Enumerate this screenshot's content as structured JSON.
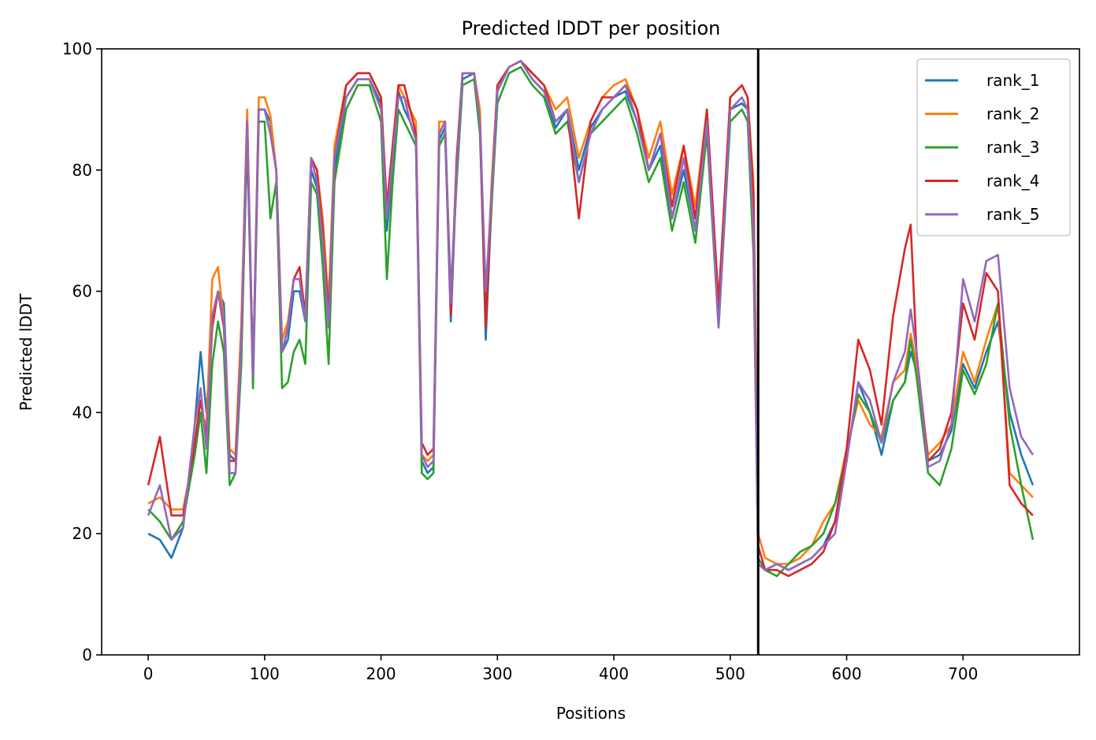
{
  "chart_data": {
    "type": "line",
    "title": "Predicted lDDT per position",
    "xlabel": "Positions",
    "ylabel": "Predicted lDDT",
    "xlim": [
      -40,
      800
    ],
    "ylim": [
      0,
      100
    ],
    "xticks": [
      "0",
      "100",
      "200",
      "300",
      "400",
      "500",
      "600",
      "700"
    ],
    "yticks": [
      "0",
      "20",
      "40",
      "60",
      "80",
      "100"
    ],
    "vline_x": 524,
    "legend_position": "top-right",
    "grid": false,
    "x": [
      0,
      10,
      20,
      30,
      40,
      45,
      50,
      55,
      60,
      65,
      70,
      75,
      80,
      85,
      90,
      95,
      100,
      105,
      110,
      115,
      120,
      125,
      130,
      135,
      140,
      145,
      150,
      155,
      160,
      170,
      180,
      190,
      200,
      205,
      210,
      215,
      220,
      225,
      230,
      235,
      240,
      245,
      250,
      255,
      260,
      265,
      270,
      280,
      285,
      290,
      295,
      300,
      310,
      320,
      330,
      340,
      350,
      360,
      370,
      380,
      390,
      400,
      410,
      420,
      430,
      440,
      450,
      460,
      470,
      480,
      490,
      500,
      510,
      515,
      520,
      524,
      530,
      540,
      550,
      560,
      570,
      580,
      590,
      600,
      610,
      620,
      630,
      640,
      650,
      655,
      660,
      670,
      680,
      690,
      700,
      710,
      720,
      730,
      740,
      750,
      760
    ],
    "series": [
      {
        "name": "rank_1",
        "color": "#1f77b4",
        "values": [
          20,
          19,
          16,
          21,
          38,
          50,
          40,
          55,
          60,
          58,
          33,
          32,
          50,
          85,
          45,
          90,
          90,
          88,
          80,
          50,
          52,
          60,
          60,
          55,
          80,
          77,
          70,
          55,
          80,
          92,
          95,
          95,
          91,
          70,
          80,
          93,
          90,
          88,
          85,
          32,
          30,
          31,
          85,
          87,
          55,
          80,
          95,
          96,
          88,
          52,
          75,
          93,
          97,
          98,
          95,
          93,
          87,
          90,
          80,
          87,
          90,
          92,
          93,
          88,
          80,
          84,
          72,
          80,
          70,
          88,
          55,
          90,
          91,
          90,
          75,
          15,
          14,
          15,
          14,
          15,
          16,
          18,
          22,
          32,
          45,
          40,
          33,
          42,
          45,
          50,
          47,
          32,
          33,
          37,
          48,
          44,
          50,
          55,
          40,
          33,
          28
        ]
      },
      {
        "name": "rank_2",
        "color": "#ff7f0e",
        "values": [
          25,
          26,
          24,
          24,
          34,
          40,
          38,
          62,
          64,
          55,
          34,
          33,
          55,
          90,
          46,
          92,
          92,
          89,
          80,
          52,
          55,
          62,
          62,
          56,
          82,
          80,
          72,
          58,
          84,
          94,
          96,
          96,
          92,
          72,
          82,
          94,
          92,
          90,
          88,
          33,
          32,
          33,
          88,
          88,
          58,
          82,
          96,
          96,
          90,
          56,
          78,
          94,
          97,
          98,
          96,
          94,
          90,
          92,
          82,
          88,
          92,
          94,
          95,
          90,
          82,
          88,
          76,
          84,
          74,
          90,
          58,
          92,
          94,
          92,
          78,
          20,
          16,
          15,
          15,
          16,
          18,
          22,
          25,
          34,
          42,
          38,
          36,
          45,
          47,
          53,
          48,
          33,
          35,
          38,
          50,
          45,
          52,
          58,
          30,
          28,
          26
        ]
      },
      {
        "name": "rank_3",
        "color": "#2ca02c",
        "values": [
          24,
          22,
          19,
          22,
          33,
          40,
          30,
          48,
          55,
          50,
          28,
          30,
          48,
          88,
          44,
          88,
          88,
          72,
          78,
          44,
          45,
          50,
          52,
          48,
          78,
          76,
          64,
          48,
          78,
          90,
          94,
          94,
          88,
          62,
          78,
          90,
          88,
          86,
          84,
          30,
          29,
          30,
          84,
          86,
          60,
          78,
          94,
          95,
          86,
          56,
          74,
          91,
          96,
          97,
          94,
          92,
          86,
          88,
          78,
          86,
          88,
          90,
          92,
          86,
          78,
          82,
          70,
          78,
          68,
          86,
          54,
          88,
          90,
          88,
          66,
          16,
          14,
          13,
          15,
          17,
          18,
          20,
          25,
          33,
          43,
          40,
          35,
          42,
          45,
          52,
          46,
          30,
          28,
          34,
          47,
          43,
          48,
          58,
          38,
          28,
          19
        ]
      },
      {
        "name": "rank_4",
        "color": "#d62728",
        "values": [
          28,
          36,
          23,
          23,
          35,
          42,
          36,
          54,
          60,
          54,
          32,
          32,
          52,
          88,
          46,
          90,
          90,
          86,
          80,
          50,
          54,
          62,
          64,
          56,
          82,
          80,
          70,
          56,
          82,
          94,
          96,
          96,
          92,
          74,
          84,
          94,
          94,
          90,
          86,
          35,
          33,
          34,
          86,
          88,
          56,
          82,
          96,
          96,
          88,
          54,
          76,
          94,
          97,
          98,
          96,
          94,
          88,
          90,
          72,
          88,
          92,
          92,
          94,
          90,
          80,
          86,
          74,
          84,
          72,
          90,
          58,
          92,
          94,
          92,
          76,
          18,
          14,
          14,
          13,
          14,
          15,
          17,
          22,
          34,
          52,
          47,
          38,
          56,
          67,
          71,
          50,
          32,
          34,
          40,
          58,
          52,
          63,
          60,
          28,
          25,
          23
        ]
      },
      {
        "name": "rank_5",
        "color": "#9467bd",
        "values": [
          23,
          28,
          19,
          21,
          38,
          44,
          34,
          56,
          60,
          55,
          30,
          30,
          52,
          88,
          46,
          90,
          90,
          86,
          80,
          50,
          54,
          62,
          62,
          55,
          82,
          78,
          68,
          54,
          82,
          92,
          95,
          95,
          90,
          72,
          82,
          92,
          92,
          88,
          85,
          33,
          31,
          32,
          86,
          88,
          58,
          80,
          96,
          96,
          88,
          60,
          76,
          93,
          97,
          98,
          95,
          93,
          88,
          90,
          78,
          86,
          90,
          92,
          94,
          88,
          80,
          86,
          72,
          82,
          70,
          88,
          54,
          90,
          92,
          90,
          70,
          15,
          14,
          15,
          14,
          15,
          16,
          18,
          20,
          32,
          45,
          42,
          35,
          45,
          50,
          57,
          50,
          31,
          32,
          38,
          62,
          55,
          65,
          66,
          44,
          36,
          33
        ]
      }
    ]
  }
}
